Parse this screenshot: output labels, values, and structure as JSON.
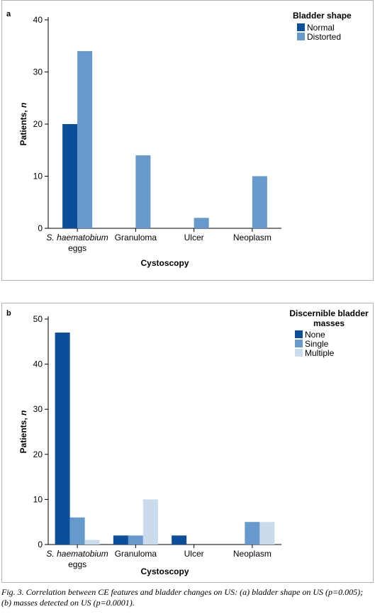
{
  "figure": {
    "caption": "Fig. 3. Correlation between CE features and bladder changes on US: (a) bladder shape on US (p=0.005); (b) masses detected on US (p=0.0001)."
  },
  "chart_data": [
    {
      "panel": "a",
      "type": "bar",
      "xlabel": "Cystoscopy",
      "ylabel": "Patients, n",
      "ylim": [
        0,
        40
      ],
      "yticks": [
        0,
        10,
        20,
        30,
        40
      ],
      "categories": [
        [
          "S. haematobium",
          "eggs"
        ],
        [
          "Granuloma"
        ],
        [
          "Ulcer"
        ],
        [
          "Neoplasm"
        ]
      ],
      "legend": {
        "title": "Bladder shape",
        "placement": "top-right"
      },
      "series": [
        {
          "name": "Normal",
          "color": "#0b4f9a",
          "values": [
            20,
            0,
            0,
            0
          ]
        },
        {
          "name": "Distorted",
          "color": "#6699cc",
          "values": [
            34,
            14,
            2,
            10
          ]
        }
      ]
    },
    {
      "panel": "b",
      "type": "bar",
      "xlabel": "Cystoscopy",
      "ylabel": "Patients, n",
      "ylim": [
        0,
        50
      ],
      "yticks": [
        0,
        10,
        20,
        30,
        40,
        50
      ],
      "categories": [
        [
          "S. haematobium",
          "eggs"
        ],
        [
          "Granuloma"
        ],
        [
          "Ulcer"
        ],
        [
          "Neoplasm"
        ]
      ],
      "legend": {
        "title": "Discernible bladder masses",
        "placement": "top-right"
      },
      "series": [
        {
          "name": "None",
          "color": "#0b4f9a",
          "values": [
            47,
            2,
            2,
            0
          ]
        },
        {
          "name": "Single",
          "color": "#6699cc",
          "values": [
            6,
            2,
            0,
            5
          ]
        },
        {
          "name": "Multiple",
          "color": "#c9dbec",
          "values": [
            1,
            10,
            0,
            5
          ]
        }
      ]
    }
  ]
}
